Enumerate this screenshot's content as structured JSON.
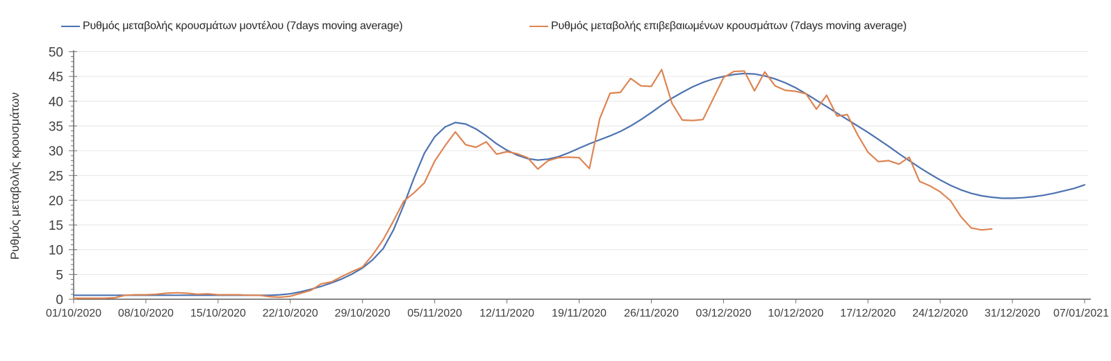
{
  "legend": [
    {
      "label": "Ρυθμός μεταβολής κρουσμάτων μοντέλου (7days moving average)",
      "color": "#4C72B0"
    },
    {
      "label": "Ρυθμός μεταβολής επιβεβαιωμένων κρουσμάτων (7days moving average)",
      "color": "#DD8452"
    }
  ],
  "chart_data": {
    "type": "line",
    "title": "",
    "xlabel": "",
    "ylabel": "Ρυθμός μεταβολής κρουσμάτων",
    "ylim": [
      0,
      50
    ],
    "ytick_interval": 5,
    "y_minor_tick_interval": 1,
    "grid": "horizontal",
    "legend_position": "top",
    "x_tick_labels": [
      "01/10/2020",
      "08/10/2020",
      "15/10/2020",
      "22/10/2020",
      "29/10/2020",
      "05/11/2020",
      "12/11/2020",
      "19/11/2020",
      "26/11/2020",
      "03/12/2020",
      "10/12/2020",
      "17/12/2020",
      "24/12/2020",
      "31/12/2020",
      "07/01/2021"
    ],
    "x_tick_interval_days": 7,
    "x_total_days": 98,
    "colors": {
      "grid": "#e6e6e6",
      "spine": "#3d3d3d",
      "tick": "#6e6e6e",
      "tick_label": "#3f3f3f"
    },
    "series": [
      {
        "name": "Ρυθμός μεταβολής κρουσμάτων μοντέλου (7days moving average)",
        "color": "#4C72B0",
        "start_day": 0,
        "values": [
          0.8,
          0.8,
          0.8,
          0.8,
          0.8,
          0.8,
          0.8,
          0.8,
          0.8,
          0.8,
          0.8,
          0.8,
          0.8,
          0.8,
          0.8,
          0.8,
          0.8,
          0.8,
          0.8,
          0.8,
          0.9,
          1.1,
          1.5,
          2.0,
          2.6,
          3.3,
          4.1,
          5.1,
          6.3,
          8.0,
          10.2,
          14.0,
          19.0,
          24.5,
          29.5,
          32.8,
          34.8,
          35.7,
          35.4,
          34.4,
          33.0,
          31.4,
          30.1,
          29.1,
          28.4,
          28.1,
          28.3,
          28.8,
          29.6,
          30.5,
          31.4,
          32.2,
          33.0,
          33.9,
          35.0,
          36.3,
          37.7,
          39.2,
          40.6,
          41.8,
          42.9,
          43.8,
          44.5,
          45.0,
          45.4,
          45.6,
          45.5,
          45.1,
          44.5,
          43.7,
          42.7,
          41.5,
          40.2,
          38.9,
          37.6,
          36.3,
          35.0,
          33.7,
          32.3,
          30.9,
          29.4,
          28.0,
          26.6,
          25.3,
          24.1,
          23.0,
          22.1,
          21.4,
          20.9,
          20.6,
          20.4,
          20.4,
          20.5,
          20.7,
          21.0,
          21.4,
          21.9,
          22.4,
          23.1
        ]
      },
      {
        "name": "Ρυθμός μεταβολής επιβεβαιωμένων κρουσμάτων (7days moving average)",
        "color": "#DD8452",
        "start_day": 0,
        "values": [
          0.2,
          0.2,
          0.2,
          0.2,
          0.3,
          0.8,
          0.9,
          0.9,
          1.0,
          1.2,
          1.3,
          1.2,
          1.0,
          1.1,
          0.9,
          0.9,
          0.9,
          0.8,
          0.8,
          0.5,
          0.4,
          0.6,
          1.2,
          1.8,
          3.1,
          3.5,
          4.6,
          5.6,
          6.5,
          9.0,
          12.0,
          15.8,
          19.8,
          21.5,
          23.5,
          27.9,
          31.0,
          33.8,
          31.2,
          30.7,
          31.8,
          29.3,
          29.8,
          29.4,
          28.6,
          26.3,
          28.0,
          28.6,
          28.7,
          28.6,
          26.4,
          36.5,
          41.6,
          41.8,
          44.6,
          43.1,
          43.0,
          46.4,
          39.6,
          36.2,
          36.1,
          36.3,
          40.5,
          44.8,
          46.0,
          46.1,
          42.1,
          45.9,
          43.1,
          42.2,
          42.0,
          41.5,
          38.4,
          41.2,
          37.0,
          37.3,
          33.2,
          29.7,
          27.8,
          28.0,
          27.3,
          28.7,
          23.8,
          22.9,
          21.7,
          19.9,
          16.7,
          14.4,
          14.0,
          14.2
        ]
      }
    ]
  }
}
